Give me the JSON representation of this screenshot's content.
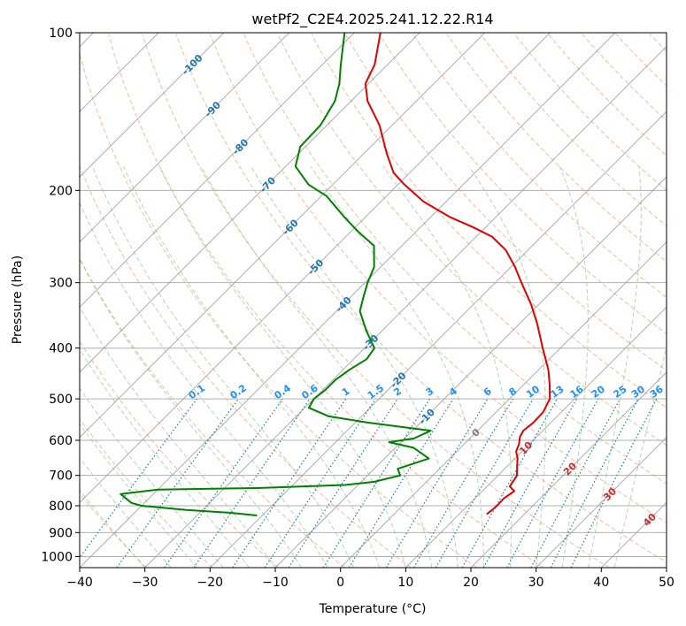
{
  "chart_data": {
    "type": "line",
    "title": "wetPf2_C2E4.2025.241.12.22.R14",
    "xlabel": "Temperature (°C)",
    "ylabel": "Pressure (hPa)",
    "xlim": [
      -40,
      50
    ],
    "ylim": [
      1050,
      100
    ],
    "y_scale": "log",
    "grid": true,
    "skew_t": true,
    "x_ticks": [
      -40,
      -30,
      -20,
      -10,
      0,
      10,
      20,
      30,
      40,
      50
    ],
    "y_ticks": [
      1000,
      900,
      800,
      700,
      600,
      500,
      400,
      300,
      200,
      100
    ],
    "isotherm_labels": [
      -100,
      -90,
      -80,
      -70,
      -60,
      -50,
      -40,
      -30,
      -20,
      -10,
      0,
      10,
      20,
      30,
      40
    ],
    "mixing_ratio_labels": [
      "0.1",
      "0.2",
      "0.4",
      "0.6",
      "1",
      "1.5",
      "2",
      "3",
      "4",
      "6",
      "8",
      "10",
      "13",
      "16",
      "20",
      "25",
      "30",
      "36"
    ],
    "colors": {
      "temperature": "#e00000",
      "dewpoint": "#008000",
      "isotherm": "#999999",
      "dry_adiabat": "#f4a582",
      "moist_adiabat": "#7fbf7f",
      "mixing_ratio": "#1f77b4",
      "label_cold": "#1f77b4",
      "label_warm": "#d62728",
      "label_zero": "#7f7f7f",
      "label_mixing": "#1e90ff"
    },
    "series": [
      {
        "name": "Temperature",
        "points": [
          {
            "p": 830,
            "t": 14.2
          },
          {
            "p": 815,
            "t": 14.4
          },
          {
            "p": 800,
            "t": 14.5
          },
          {
            "p": 775,
            "t": 14.4
          },
          {
            "p": 750,
            "t": 14.9
          },
          {
            "p": 735,
            "t": 13.5
          },
          {
            "p": 700,
            "t": 12.9
          },
          {
            "p": 670,
            "t": 11.4
          },
          {
            "p": 650,
            "t": 10.4
          },
          {
            "p": 630,
            "t": 9.1
          },
          {
            "p": 610,
            "t": 8.4
          },
          {
            "p": 590,
            "t": 7.4
          },
          {
            "p": 575,
            "t": 7.0
          },
          {
            "p": 555,
            "t": 7.3
          },
          {
            "p": 530,
            "t": 7.2
          },
          {
            "p": 500,
            "t": 6.2
          },
          {
            "p": 470,
            "t": 4.0
          },
          {
            "p": 440,
            "t": 1.5
          },
          {
            "p": 400,
            "t": -2.7
          },
          {
            "p": 360,
            "t": -7.2
          },
          {
            "p": 330,
            "t": -11.2
          },
          {
            "p": 300,
            "t": -16.0
          },
          {
            "p": 280,
            "t": -19.4
          },
          {
            "p": 260,
            "t": -23.4
          },
          {
            "p": 245,
            "t": -27.6
          },
          {
            "p": 235,
            "t": -32.0
          },
          {
            "p": 225,
            "t": -37.0
          },
          {
            "p": 210,
            "t": -43.5
          },
          {
            "p": 195,
            "t": -49.0
          },
          {
            "p": 185,
            "t": -52.5
          },
          {
            "p": 170,
            "t": -56.5
          },
          {
            "p": 150,
            "t": -62.0
          },
          {
            "p": 135,
            "t": -67.5
          },
          {
            "p": 125,
            "t": -70.5
          },
          {
            "p": 115,
            "t": -72.0
          },
          {
            "p": 100,
            "t": -76.0
          }
        ]
      },
      {
        "name": "Dewpoint",
        "points": [
          {
            "p": 835,
            "t": -20.8
          },
          {
            "p": 825,
            "t": -25.4
          },
          {
            "p": 815,
            "t": -32.5
          },
          {
            "p": 800,
            "t": -40.0
          },
          {
            "p": 790,
            "t": -42.0
          },
          {
            "p": 760,
            "t": -45.0
          },
          {
            "p": 745,
            "t": -40.0
          },
          {
            "p": 740,
            "t": -25.0
          },
          {
            "p": 730,
            "t": -12.0
          },
          {
            "p": 720,
            "t": -8.0
          },
          {
            "p": 700,
            "t": -5.0
          },
          {
            "p": 680,
            "t": -6.4
          },
          {
            "p": 650,
            "t": -3.2
          },
          {
            "p": 620,
            "t": -7.2
          },
          {
            "p": 605,
            "t": -11.8
          },
          {
            "p": 595,
            "t": -8.6
          },
          {
            "p": 575,
            "t": -7.2
          },
          {
            "p": 555,
            "t": -18.0
          },
          {
            "p": 540,
            "t": -25.0
          },
          {
            "p": 520,
            "t": -29.4
          },
          {
            "p": 500,
            "t": -30.0
          },
          {
            "p": 480,
            "t": -29.6
          },
          {
            "p": 460,
            "t": -29.6
          },
          {
            "p": 440,
            "t": -29.0
          },
          {
            "p": 420,
            "t": -28.0
          },
          {
            "p": 400,
            "t": -28.5
          },
          {
            "p": 370,
            "t": -32.5
          },
          {
            "p": 340,
            "t": -36.4
          },
          {
            "p": 320,
            "t": -38.0
          },
          {
            "p": 300,
            "t": -39.6
          },
          {
            "p": 280,
            "t": -41.0
          },
          {
            "p": 255,
            "t": -44.3
          },
          {
            "p": 240,
            "t": -48.8
          },
          {
            "p": 225,
            "t": -53.2
          },
          {
            "p": 205,
            "t": -59.2
          },
          {
            "p": 195,
            "t": -63.7
          },
          {
            "p": 180,
            "t": -68.5
          },
          {
            "p": 165,
            "t": -70.8
          },
          {
            "p": 150,
            "t": -71.0
          },
          {
            "p": 135,
            "t": -72.5
          },
          {
            "p": 125,
            "t": -74.5
          },
          {
            "p": 115,
            "t": -77.2
          },
          {
            "p": 100,
            "t": -81.5
          }
        ]
      }
    ]
  }
}
